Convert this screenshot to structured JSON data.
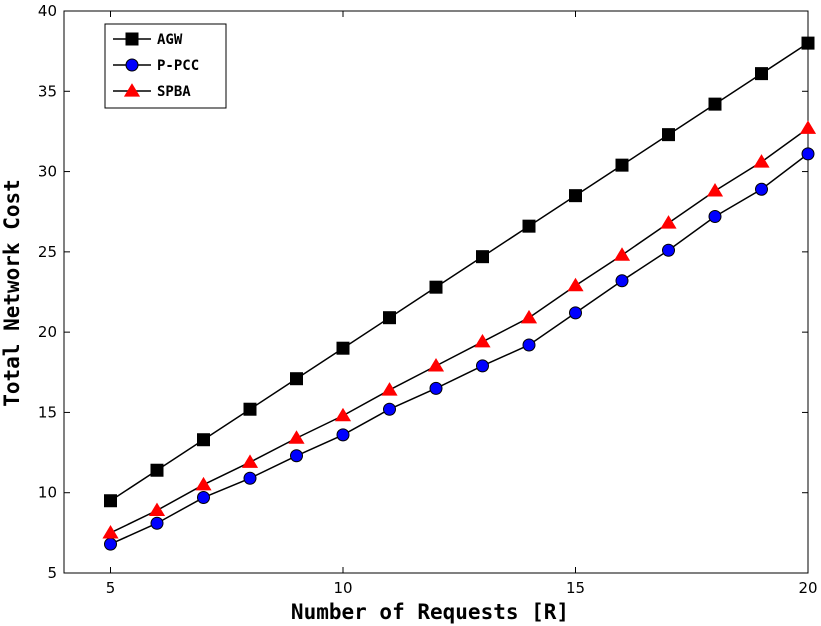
{
  "chart_data": {
    "type": "line",
    "xlabel": "Number of Requests [R]",
    "ylabel": "Total Network Cost",
    "xlim": [
      4,
      20
    ],
    "ylim": [
      5,
      40
    ],
    "xticks": [
      5,
      10,
      15,
      20
    ],
    "yticks": [
      5,
      10,
      15,
      20,
      25,
      30,
      35,
      40
    ],
    "grid": false,
    "legend_position": "top-left",
    "x": [
      5,
      6,
      7,
      8,
      9,
      10,
      11,
      12,
      13,
      14,
      15,
      16,
      17,
      18,
      19,
      20
    ],
    "series": [
      {
        "name": "AGW",
        "marker": "square",
        "marker_color": "#000000",
        "line_color": "#000000",
        "values": [
          9.5,
          11.4,
          13.3,
          15.2,
          17.1,
          19.0,
          20.9,
          22.8,
          24.7,
          26.6,
          28.5,
          30.4,
          32.3,
          34.2,
          36.1,
          38.0
        ]
      },
      {
        "name": "P-PCC",
        "marker": "circle",
        "marker_color": "#0000ff",
        "line_color": "#000000",
        "values": [
          6.8,
          8.1,
          9.7,
          10.9,
          12.3,
          13.6,
          15.2,
          16.5,
          17.9,
          19.2,
          21.2,
          23.2,
          25.1,
          27.2,
          28.9,
          31.1
        ]
      },
      {
        "name": "SPBA",
        "marker": "triangle",
        "marker_color": "#ff0000",
        "line_color": "#000000",
        "values": [
          7.5,
          8.9,
          10.5,
          11.9,
          13.4,
          14.8,
          16.4,
          17.9,
          19.4,
          20.9,
          22.9,
          24.8,
          26.8,
          28.8,
          30.6,
          32.7
        ]
      }
    ]
  }
}
